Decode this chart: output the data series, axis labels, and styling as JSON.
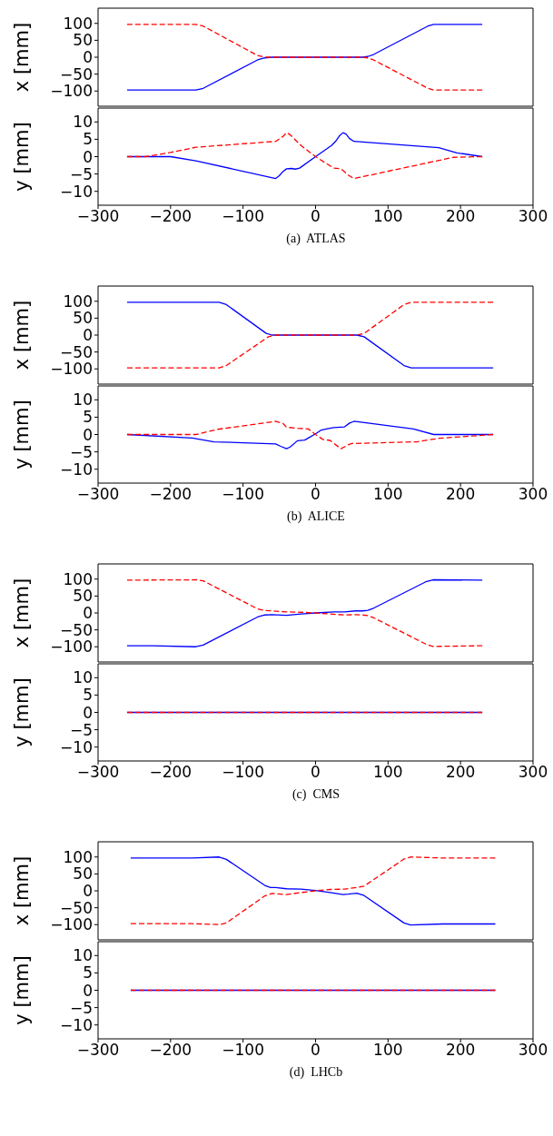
{
  "chart_data": [
    {
      "type": "line",
      "ylabel": "x [mm]",
      "tick_labels": "y",
      "marker": "none",
      "xlim": [
        -300,
        300
      ],
      "ylim": [
        -145,
        145
      ],
      "xticks": [
        -300,
        -200,
        -100,
        0,
        100,
        200,
        300
      ],
      "yticks": [
        {
          "value": -100,
          "label": "−100"
        },
        {
          "value": -50,
          "label": "−50"
        },
        0,
        50,
        100
      ],
      "series": [
        {
          "color": "#0000ff",
          "line_style": "solid",
          "x": [
            -260,
            -165,
            -155,
            -80,
            -70,
            -60,
            65,
            72,
            80,
            155,
            163,
            230
          ],
          "values": [
            -97,
            -97,
            -92,
            -8,
            -2,
            0,
            0,
            2,
            8,
            92,
            97,
            97
          ]
        },
        {
          "color": "#ff0000",
          "line_style": "dashed",
          "x": [
            -260,
            -165,
            -155,
            -80,
            -70,
            65,
            72,
            80,
            155,
            163,
            230
          ],
          "values": [
            97,
            97,
            92,
            5,
            0,
            0,
            -2,
            -8,
            -92,
            -97,
            -97
          ]
        }
      ]
    },
    {
      "type": "line",
      "ylabel": "y [mm]",
      "marker": "none",
      "annotations": [
        "(a)  ATLAS"
      ],
      "xlim": [
        -300,
        300
      ],
      "ylim": [
        -14,
        14
      ],
      "xticks": [
        {
          "value": -300,
          "label": "−300"
        },
        {
          "value": -200,
          "label": "−200"
        },
        {
          "value": -100,
          "label": "−100"
        },
        0,
        100,
        200,
        300
      ],
      "yticks": [
        {
          "value": -10,
          "label": "−10"
        },
        {
          "value": -5,
          "label": "−5"
        },
        0,
        5,
        10
      ],
      "series": [
        {
          "color": "#0000ff",
          "line_style": "solid",
          "x": [
            -260,
            -200,
            -165,
            -55,
            -50,
            -45,
            -40,
            -33,
            -28,
            -22,
            0,
            22,
            28,
            33,
            38,
            42,
            47,
            53,
            170,
            195,
            230
          ],
          "values": [
            0,
            0,
            -1.2,
            -6.3,
            -5.5,
            -4.3,
            -3.5,
            -3.4,
            -3.6,
            -3.3,
            0,
            3.2,
            4.5,
            6,
            6.9,
            6.5,
            5.2,
            4.4,
            2.6,
            1.1,
            0
          ]
        },
        {
          "color": "#ff0000",
          "line_style": "dashed",
          "x": [
            -260,
            -235,
            -200,
            -165,
            -55,
            -45,
            -40,
            -35,
            -20,
            0,
            25,
            35,
            45,
            53,
            60,
            190,
            230
          ],
          "values": [
            0,
            0,
            1.2,
            2.7,
            4.4,
            5.8,
            6.9,
            6.3,
            3.2,
            0,
            -3.3,
            -3.5,
            -5.3,
            -6.3,
            -6,
            -0.2,
            0
          ]
        }
      ]
    },
    {
      "type": "line",
      "ylabel": "x [mm]",
      "tick_labels": "y",
      "marker": "none",
      "xlim": [
        -300,
        300
      ],
      "ylim": [
        -145,
        145
      ],
      "xticks": [
        -300,
        -200,
        -100,
        0,
        100,
        200,
        300
      ],
      "yticks": [
        {
          "value": -100,
          "label": "−100"
        },
        {
          "value": -50,
          "label": "−50"
        },
        0,
        50,
        100
      ],
      "series": [
        {
          "color": "#0000ff",
          "line_style": "solid",
          "x": [
            -260,
            -133,
            -123,
            -68,
            -60,
            57,
            67,
            122,
            132,
            245
          ],
          "values": [
            97,
            97,
            90,
            5,
            0,
            0,
            -5,
            -90,
            -97,
            -97
          ]
        },
        {
          "color": "#ff0000",
          "line_style": "dashed",
          "x": [
            -260,
            -133,
            -123,
            -65,
            -57,
            57,
            67,
            122,
            132,
            245
          ],
          "values": [
            -97,
            -97,
            -90,
            -5,
            0,
            0,
            5,
            90,
            97,
            97
          ]
        }
      ]
    },
    {
      "type": "line",
      "ylabel": "y [mm]",
      "marker": "none",
      "annotations": [
        "(b)  ALICE"
      ],
      "xlim": [
        -300,
        300
      ],
      "ylim": [
        -14,
        14
      ],
      "xticks": [
        {
          "value": -300,
          "label": "−300"
        },
        {
          "value": -200,
          "label": "−200"
        },
        {
          "value": -100,
          "label": "−100"
        },
        0,
        100,
        200,
        300
      ],
      "yticks": [
        {
          "value": -10,
          "label": "−10"
        },
        {
          "value": -5,
          "label": "−5"
        },
        0,
        5,
        10
      ],
      "series": [
        {
          "color": "#0000ff",
          "line_style": "solid",
          "x": [
            -260,
            -170,
            -140,
            -55,
            -48,
            -40,
            -35,
            -25,
            -15,
            -10,
            0,
            8,
            15,
            25,
            40,
            47,
            53,
            135,
            163,
            245
          ],
          "values": [
            0,
            -1,
            -2.1,
            -2.7,
            -3.4,
            -4.1,
            -3.6,
            -1.8,
            -1.6,
            -1,
            0.2,
            1.3,
            1.6,
            2,
            2.2,
            3.3,
            3.8,
            1.6,
            0,
            0
          ]
        },
        {
          "color": "#ff0000",
          "line_style": "dashed",
          "x": [
            -260,
            -165,
            -135,
            -55,
            -45,
            -40,
            -25,
            -10,
            0,
            10,
            20,
            30,
            35,
            45,
            50,
            140,
            170,
            245
          ],
          "values": [
            0,
            0,
            1.5,
            3.8,
            3.2,
            2.1,
            1.8,
            1.6,
            0,
            -1.4,
            -1.7,
            -3.3,
            -4.1,
            -3,
            -2.6,
            -2.1,
            -1.1,
            0
          ]
        }
      ]
    },
    {
      "type": "line",
      "ylabel": "x [mm]",
      "tick_labels": "y",
      "marker": "none",
      "xlim": [
        -300,
        300
      ],
      "ylim": [
        -145,
        145
      ],
      "xticks": [
        -300,
        -200,
        -100,
        0,
        100,
        200,
        300
      ],
      "yticks": [
        {
          "value": -100,
          "label": "−100"
        },
        {
          "value": -50,
          "label": "−50"
        },
        0,
        50,
        100
      ],
      "series": [
        {
          "color": "#0000ff",
          "line_style": "solid",
          "x": [
            -260,
            -225,
            -165,
            -155,
            -80,
            -70,
            -60,
            -40,
            -20,
            0,
            25,
            40,
            55,
            65,
            72,
            80,
            152,
            162,
            230
          ],
          "values": [
            -97,
            -97,
            -100,
            -95,
            -12,
            -6,
            -5,
            -7,
            -3,
            0,
            3,
            3,
            6,
            6,
            8,
            14,
            92,
            98,
            97
          ]
        },
        {
          "color": "#ff0000",
          "line_style": "dashed",
          "x": [
            -260,
            -165,
            -155,
            -80,
            -70,
            -60,
            -40,
            -20,
            0,
            20,
            40,
            55,
            65,
            72,
            80,
            152,
            162,
            230
          ],
          "values": [
            97,
            98,
            95,
            12,
            7,
            6,
            3,
            2,
            0,
            -3,
            -6,
            -5,
            -6,
            -8,
            -14,
            -92,
            -99,
            -97
          ]
        }
      ]
    },
    {
      "type": "line",
      "ylabel": "y [mm]",
      "marker": "none",
      "annotations": [
        "(c)  CMS"
      ],
      "xlim": [
        -300,
        300
      ],
      "ylim": [
        -14,
        14
      ],
      "xticks": [
        {
          "value": -300,
          "label": "−300"
        },
        {
          "value": -200,
          "label": "−200"
        },
        {
          "value": -100,
          "label": "−100"
        },
        0,
        100,
        200,
        300
      ],
      "yticks": [
        {
          "value": -10,
          "label": "−10"
        },
        {
          "value": -5,
          "label": "−5"
        },
        0,
        5,
        10
      ],
      "series": [
        {
          "color": "#0000ff",
          "line_style": "solid",
          "x": [
            -260,
            230
          ],
          "values": [
            0,
            0
          ]
        },
        {
          "color": "#ff0000",
          "line_style": "dashed",
          "x": [
            -260,
            230
          ],
          "values": [
            0,
            0
          ]
        }
      ]
    },
    {
      "type": "line",
      "ylabel": "x [mm]",
      "tick_labels": "y",
      "marker": "none",
      "xlim": [
        -300,
        300
      ],
      "ylim": [
        -145,
        145
      ],
      "xticks": [
        -300,
        -200,
        -100,
        0,
        100,
        200,
        300
      ],
      "yticks": [
        {
          "value": -100,
          "label": "−100"
        },
        {
          "value": -50,
          "label": "−50"
        },
        0,
        50,
        100
      ],
      "series": [
        {
          "color": "#0000ff",
          "line_style": "solid",
          "x": [
            -255,
            -170,
            -133,
            -123,
            -70,
            -62,
            -55,
            -40,
            -20,
            0,
            20,
            38,
            45,
            57,
            67,
            122,
            131,
            175,
            248
          ],
          "values": [
            97,
            97,
            100,
            93,
            16,
            10,
            10,
            6,
            5,
            1,
            -5,
            -11,
            -10,
            -7,
            -14,
            -95,
            -101,
            -98,
            -98
          ]
        },
        {
          "color": "#ff0000",
          "line_style": "dashed",
          "x": [
            -255,
            -170,
            -133,
            -123,
            -70,
            -60,
            -40,
            -20,
            0,
            20,
            40,
            57,
            67,
            122,
            131,
            175,
            248
          ],
          "values": [
            -97,
            -97,
            -100,
            -95,
            -15,
            -8,
            -11,
            -5,
            0,
            4,
            5,
            10,
            14,
            94,
            100,
            97,
            97
          ]
        }
      ]
    },
    {
      "type": "line",
      "ylabel": "y [mm]",
      "marker": "none",
      "annotations": [
        "(d)  LHCb"
      ],
      "xlim": [
        -300,
        300
      ],
      "ylim": [
        -14,
        14
      ],
      "xticks": [
        {
          "value": -300,
          "label": "−300"
        },
        {
          "value": -200,
          "label": "−200"
        },
        {
          "value": -100,
          "label": "−100"
        },
        0,
        100,
        200,
        300
      ],
      "yticks": [
        {
          "value": -10,
          "label": "−10"
        },
        {
          "value": -5,
          "label": "−5"
        },
        0,
        5,
        10
      ],
      "series": [
        {
          "color": "#0000ff",
          "line_style": "solid",
          "x": [
            -255,
            248
          ],
          "values": [
            0,
            0
          ]
        },
        {
          "color": "#ff0000",
          "line_style": "dashed",
          "x": [
            -255,
            248
          ],
          "values": [
            0,
            0
          ]
        }
      ]
    }
  ]
}
